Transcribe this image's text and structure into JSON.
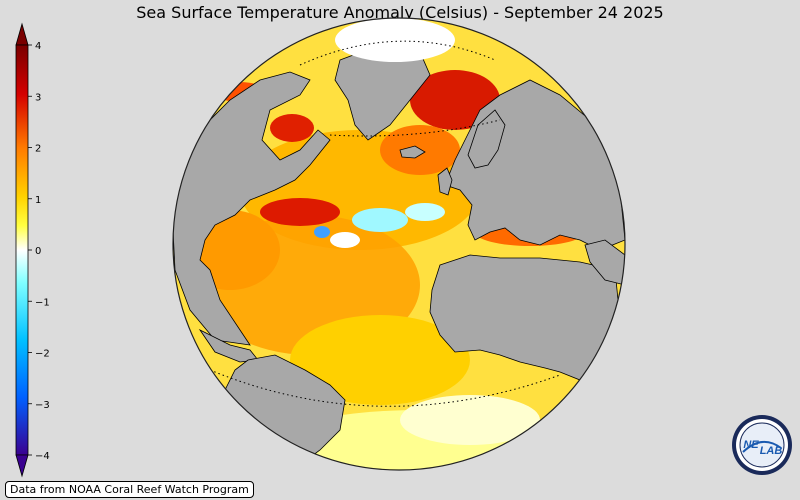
{
  "title": "Sea Surface Temperature Anomaly (Celsius) - September 24 2025",
  "colorbar": {
    "ticks": [
      "4",
      "3",
      "2",
      "1",
      "0",
      "−1",
      "−2",
      "−3",
      "−4"
    ],
    "colors": [
      "#7a0000",
      "#d40000",
      "#ff7a00",
      "#ffd200",
      "#ffff40",
      "#ffffff",
      "#80ffff",
      "#00c0ff",
      "#0060ff",
      "#3a0090"
    ]
  },
  "credit": "Data from NOAA Coral Reef Watch Program",
  "logo": {
    "text_left": "NE",
    "text_right": "LAB",
    "icon": "nesdis-lab-logo-icon"
  }
}
